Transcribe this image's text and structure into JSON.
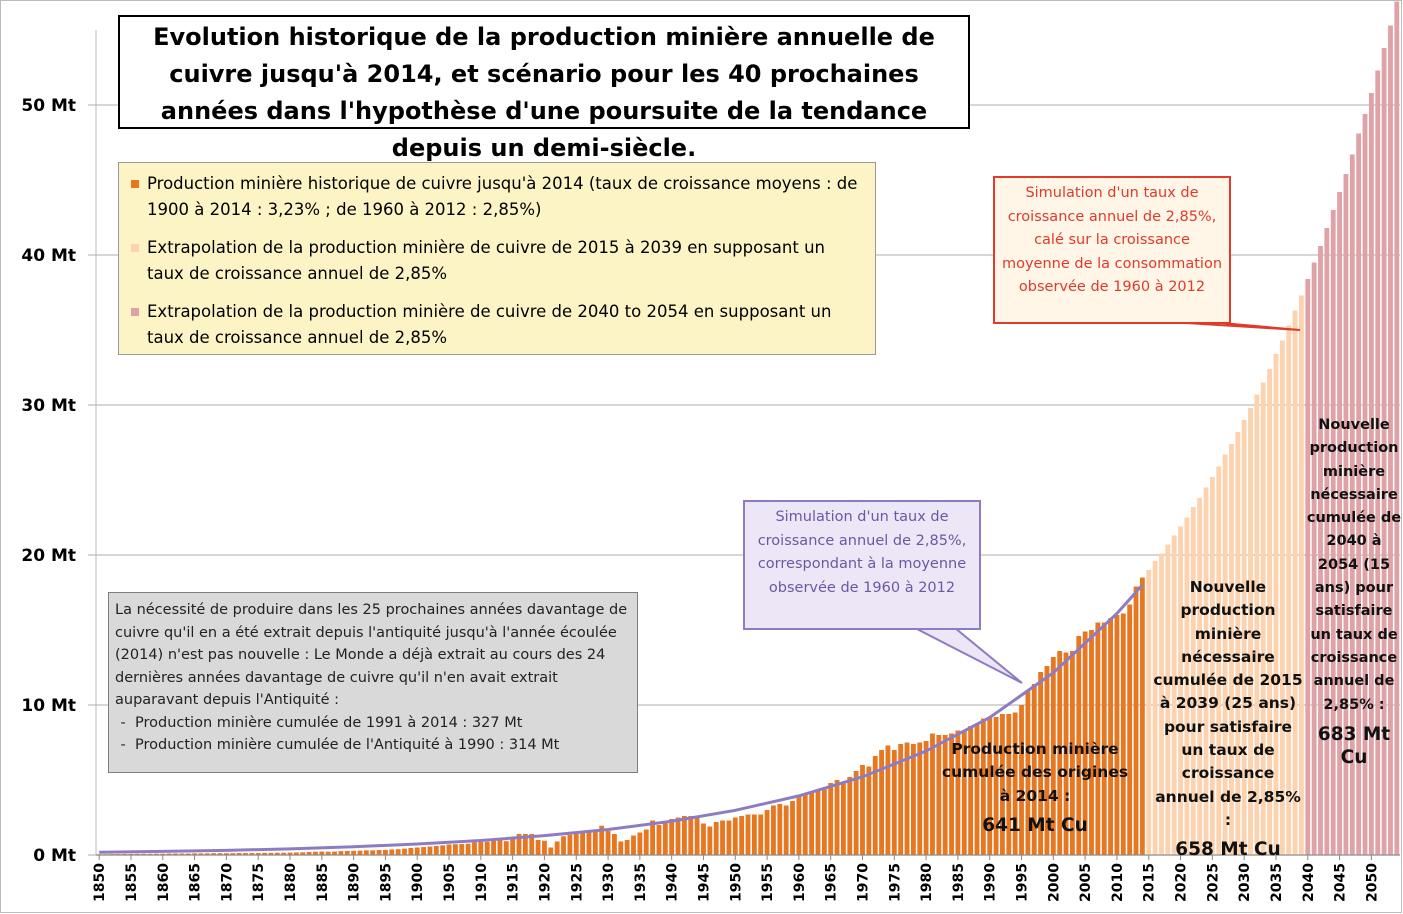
{
  "chart_data": {
    "type": "bar",
    "title": "Evolution historique de la production minière annuelle de cuivre jusqu'à 2014, et scénario pour les 40 prochaines années dans l'hypothèse d'une poursuite de la tendance depuis un demi-siècle.",
    "xlim": [
      1849.5,
      2054.5
    ],
    "xticks": [
      1850,
      1855,
      1860,
      1865,
      1870,
      1875,
      1880,
      1885,
      1890,
      1895,
      1900,
      1905,
      1910,
      1915,
      1920,
      1925,
      1930,
      1935,
      1940,
      1945,
      1950,
      1955,
      1960,
      1965,
      1970,
      1975,
      1980,
      1985,
      1990,
      1995,
      2000,
      2005,
      2010,
      2015,
      2020,
      2025,
      2030,
      2035,
      2040,
      2045,
      2050
    ],
    "ylim": [
      0,
      55
    ],
    "yticks": [
      {
        "value": 0,
        "label": "0 Mt"
      },
      {
        "value": 10,
        "label": "10 Mt"
      },
      {
        "value": 20,
        "label": "20 Mt"
      },
      {
        "value": 30,
        "label": "30 Mt"
      },
      {
        "value": 40,
        "label": "40 Mt"
      },
      {
        "value": 50,
        "label": "50 Mt"
      }
    ],
    "grid": true,
    "series": [
      {
        "name": "Production minière historique de cuivre jusqu'à 2014 (taux de croissance moyens : de 1900 à 2014 : 3,23% ; de 1960 à 2012 : 2,85%)",
        "color": "#e87722",
        "x_start": 1850,
        "values": [
          0.05,
          0.05,
          0.06,
          0.06,
          0.07,
          0.07,
          0.08,
          0.08,
          0.08,
          0.09,
          0.09,
          0.1,
          0.1,
          0.1,
          0.1,
          0.11,
          0.11,
          0.11,
          0.12,
          0.12,
          0.12,
          0.12,
          0.13,
          0.13,
          0.13,
          0.13,
          0.14,
          0.14,
          0.15,
          0.15,
          0.16,
          0.17,
          0.18,
          0.2,
          0.22,
          0.23,
          0.22,
          0.23,
          0.26,
          0.27,
          0.28,
          0.29,
          0.31,
          0.31,
          0.33,
          0.34,
          0.37,
          0.39,
          0.42,
          0.47,
          0.5,
          0.53,
          0.56,
          0.6,
          0.64,
          0.7,
          0.72,
          0.73,
          0.75,
          0.85,
          0.87,
          0.88,
          1.0,
          1.0,
          0.92,
          1.1,
          1.4,
          1.4,
          1.4,
          1.0,
          0.95,
          0.5,
          0.9,
          1.25,
          1.35,
          1.45,
          1.5,
          1.55,
          1.7,
          1.95,
          1.6,
          1.4,
          0.9,
          1.0,
          1.3,
          1.5,
          1.7,
          2.3,
          2.0,
          2.2,
          2.4,
          2.5,
          2.6,
          2.6,
          2.5,
          2.1,
          1.9,
          2.2,
          2.3,
          2.3,
          2.5,
          2.6,
          2.7,
          2.7,
          2.7,
          3.0,
          3.3,
          3.4,
          3.3,
          3.6,
          4.0,
          4.1,
          4.2,
          4.3,
          4.5,
          4.8,
          5.0,
          4.9,
          5.2,
          5.6,
          6.0,
          5.9,
          6.6,
          7.0,
          7.3,
          7.0,
          7.4,
          7.5,
          7.4,
          7.5,
          7.6,
          8.1,
          8.0,
          8.0,
          8.1,
          8.3,
          8.3,
          8.6,
          8.7,
          9.1,
          9.2,
          9.2,
          9.4,
          9.4,
          9.5,
          10.0,
          11.0,
          11.4,
          12.2,
          12.6,
          13.2,
          13.6,
          13.5,
          13.6,
          14.6,
          14.9,
          15.0,
          15.5,
          15.5,
          15.8,
          16.0,
          16.1,
          16.7,
          17.9,
          18.5
        ]
      },
      {
        "name": "Extrapolation de la production minière de cuivre de 2015 à 2039 en supposant un taux de croissance annuel de 2,85%",
        "color": "#fcd3ae",
        "x_start": 2015,
        "values": [
          19.0,
          19.6,
          20.1,
          20.7,
          21.3,
          21.9,
          22.5,
          23.2,
          23.8,
          24.5,
          25.2,
          25.9,
          26.7,
          27.4,
          28.2,
          29.0,
          29.8,
          30.7,
          31.5,
          32.4,
          33.4,
          34.3,
          35.3,
          36.3,
          37.3
        ]
      },
      {
        "name": "Extrapolation de la production minière de cuivre de 2040 to 2054 en supposant un taux de croissance annuel de 2,85%",
        "color": "#dfa2a7",
        "x_start": 2040,
        "values": [
          38.4,
          39.5,
          40.6,
          41.8,
          43.0,
          44.2,
          45.4,
          46.7,
          48.1,
          49.4,
          50.8,
          52.3,
          53.8,
          55.3,
          56.9
        ]
      }
    ],
    "trend": {
      "color": "#8d7cc3",
      "x": [
        1850,
        1860,
        1870,
        1880,
        1890,
        1900,
        1910,
        1920,
        1930,
        1940,
        1950,
        1960,
        1970,
        1980,
        1990,
        2000,
        2010,
        2014
      ],
      "values": [
        0.18,
        0.24,
        0.31,
        0.41,
        0.55,
        0.73,
        0.97,
        1.29,
        1.7,
        2.25,
        2.98,
        3.94,
        5.21,
        6.93,
        9.17,
        12.15,
        16.1,
        18.0
      ]
    },
    "annotations": {
      "red_callout": "Simulation d'un taux de croissance annuel de 2,85%, calé sur la croissance moyenne de la consommation observée de 1960 à 2012",
      "purple_callout": "Simulation d'un taux de croissance annuel de 2,85%, correspondant à la moyenne observée de 1960 à 2012",
      "note": "La nécessité de produire dans les 25 prochaines années davantage de cuivre qu'il en a été extrait depuis l'antiquité jusqu'à l'année écoulée (2014) n'est pas nouvelle : Le Monde a déjà extrait au cours des 24 dernières années davantage de cuivre qu'il n'en avait extrait auparavant depuis l'Antiquité :",
      "note_items": [
        "Production minière cumulée de 1991 à 2014 : 327 Mt",
        "Production minière cumulée de l'Antiquité à 1990 : 314 Mt"
      ],
      "cumul_hist": "Production minière cumulée des origines à 2014 :",
      "cumul_hist_value": "641 Mt Cu",
      "cumul_2039": "Nouvelle production minière nécessaire cumulée de 2015 à 2039 (25 ans) pour satisfaire un taux de croissance annuel de 2,85% :",
      "cumul_2039_value": "658 Mt Cu",
      "cumul_2054": "Nouvelle production minière nécessaire cumulée de 2040 à 2054 (15 ans) pour satisfaire un taux de croissance annuel de 2,85% :",
      "cumul_2054_value": "683 Mt Cu"
    }
  }
}
